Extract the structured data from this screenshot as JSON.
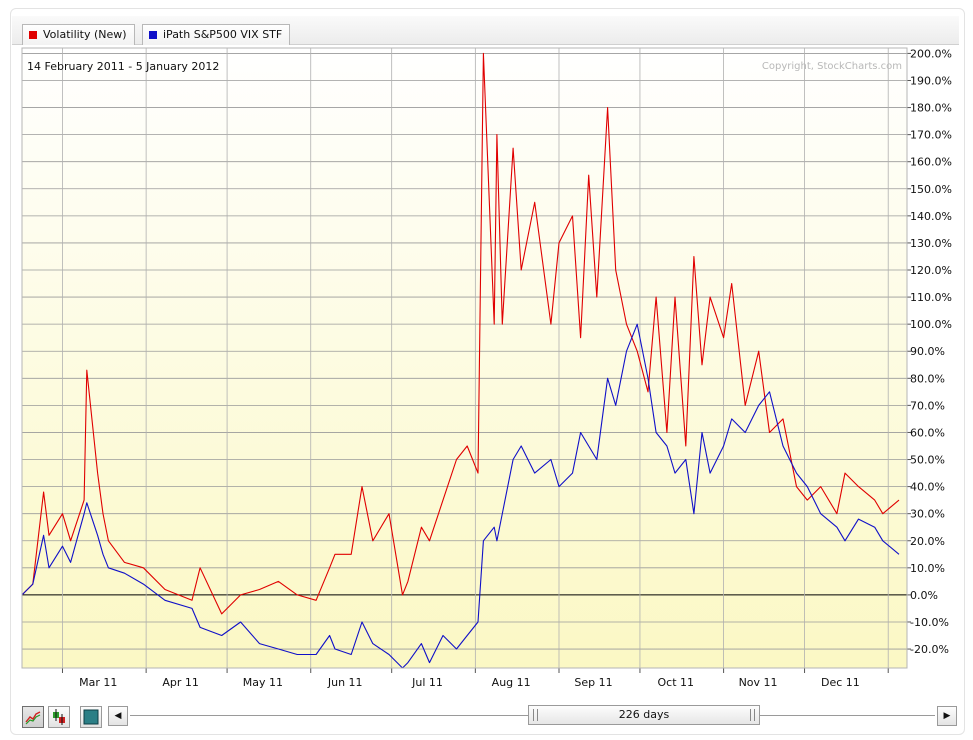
{
  "legend": [
    {
      "label": "Volatility (New)",
      "color": "#e00000"
    },
    {
      "label": "iPath S&P500 VIX STF",
      "color": "#1010c8"
    }
  ],
  "chart_data": {
    "type": "line",
    "date_range": "14 February 2011 - 5 January 2012",
    "copyright": "Copyright, StockCharts.com",
    "x_tick_labels": [
      "Mar 11",
      "Apr 11",
      "May 11",
      "Jun 11",
      "Jul 11",
      "Aug 11",
      "Sep 11",
      "Oct 11",
      "Nov 11",
      "Dec 11"
    ],
    "y_tick_labels": [
      "200.0%",
      "190.0%",
      "180.0%",
      "170.0%",
      "160.0%",
      "150.0%",
      "140.0%",
      "130.0%",
      "120.0%",
      "110.0%",
      "100.0%",
      "90.0%",
      "80.0%",
      "70.0%",
      "60.0%",
      "50.0%",
      "40.0%",
      "30.0%",
      "20.0%",
      "10.0%",
      "0.0%",
      "-10.0%",
      "-20.0%"
    ],
    "ylim": [
      -27,
      202
    ],
    "grid": true,
    "x": [
      "2011-02-14",
      "2011-02-18",
      "2011-02-22",
      "2011-02-24",
      "2011-03-01",
      "2011-03-04",
      "2011-03-09",
      "2011-03-10",
      "2011-03-14",
      "2011-03-16",
      "2011-03-18",
      "2011-03-24",
      "2011-03-31",
      "2011-04-08",
      "2011-04-18",
      "2011-04-21",
      "2011-04-29",
      "2011-05-06",
      "2011-05-13",
      "2011-05-20",
      "2011-05-27",
      "2011-06-03",
      "2011-06-08",
      "2011-06-10",
      "2011-06-16",
      "2011-06-20",
      "2011-06-24",
      "2011-06-30",
      "2011-07-05",
      "2011-07-07",
      "2011-07-12",
      "2011-07-15",
      "2011-07-20",
      "2011-07-25",
      "2011-07-29",
      "2011-08-02",
      "2011-08-04",
      "2011-08-08",
      "2011-08-09",
      "2011-08-11",
      "2011-08-15",
      "2011-08-18",
      "2011-08-23",
      "2011-08-29",
      "2011-09-01",
      "2011-09-06",
      "2011-09-09",
      "2011-09-12",
      "2011-09-15",
      "2011-09-19",
      "2011-09-22",
      "2011-09-26",
      "2011-09-30",
      "2011-10-04",
      "2011-10-07",
      "2011-10-11",
      "2011-10-14",
      "2011-10-18",
      "2011-10-21",
      "2011-10-24",
      "2011-10-27",
      "2011-11-01",
      "2011-11-04",
      "2011-11-09",
      "2011-11-14",
      "2011-11-18",
      "2011-11-23",
      "2011-11-28",
      "2011-12-02",
      "2011-12-07",
      "2011-12-13",
      "2011-12-16",
      "2011-12-21",
      "2011-12-27",
      "2011-12-30",
      "2012-01-05"
    ],
    "series": [
      {
        "name": "Volatility (New)",
        "color": "#e00000",
        "values": [
          0,
          4,
          38,
          22,
          30,
          20,
          35,
          83,
          45,
          30,
          20,
          12,
          10,
          2,
          -2,
          10,
          -7,
          0,
          2,
          5,
          0,
          -2,
          10,
          15,
          15,
          40,
          20,
          30,
          0,
          5,
          25,
          20,
          35,
          50,
          55,
          45,
          200,
          100,
          170,
          100,
          165,
          120,
          145,
          100,
          130,
          140,
          95,
          155,
          110,
          180,
          120,
          100,
          90,
          75,
          110,
          60,
          110,
          55,
          125,
          85,
          110,
          95,
          115,
          70,
          90,
          60,
          65,
          40,
          35,
          40,
          30,
          45,
          40,
          35,
          30,
          35
        ]
      },
      {
        "name": "iPath S&P500 VIX STF",
        "color": "#1010c8",
        "values": [
          0,
          4,
          22,
          10,
          18,
          12,
          30,
          34,
          22,
          15,
          10,
          8,
          4,
          -2,
          -5,
          -12,
          -15,
          -10,
          -18,
          -20,
          -22,
          -22,
          -15,
          -20,
          -22,
          -10,
          -18,
          -22,
          -27,
          -25,
          -18,
          -25,
          -15,
          -20,
          -15,
          -10,
          20,
          25,
          20,
          30,
          50,
          55,
          45,
          50,
          40,
          45,
          60,
          55,
          50,
          80,
          70,
          90,
          100,
          80,
          60,
          55,
          45,
          50,
          30,
          60,
          45,
          55,
          65,
          60,
          70,
          75,
          55,
          45,
          40,
          30,
          25,
          20,
          28,
          25,
          20,
          15
        ]
      }
    ]
  },
  "toolbar": {
    "range_label": "226 days",
    "prev_arrow": "◀",
    "next_arrow": "▶",
    "icons": [
      "line-chart-icon",
      "candlestick-icon",
      "area-chart-icon"
    ]
  }
}
